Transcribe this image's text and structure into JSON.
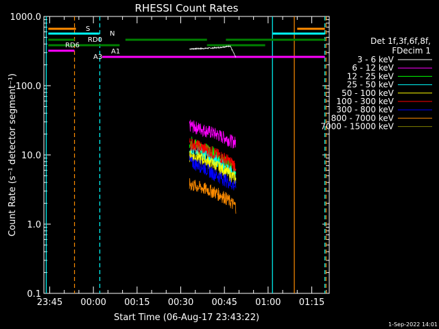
{
  "chart_data": {
    "type": "line",
    "title": "RHESSI Count Rates",
    "xlabel": "Start Time (06-Aug-17 23:43:22)",
    "ylabel": "Count Rate (s⁻¹ detector segment⁻¹)",
    "yscale": "log",
    "ylim": [
      0.1,
      1000
    ],
    "xlim_minutes_from_2345": [
      -2,
      96
    ],
    "xticks": [
      "23:45",
      "00:00",
      "00:15",
      "00:30",
      "00:45",
      "01:00",
      "01:15"
    ],
    "yticks": [
      "0.1",
      "1.0",
      "10.0",
      "100.0",
      "1000.0"
    ],
    "timestamp": "1-Sep-2022 14:01",
    "legend_header": [
      "Det 1f,3f,6f,8f,",
      "FDecim 1"
    ],
    "series": [
      {
        "name": "3 - 6 keV",
        "color": "#ffffff",
        "x": [
          48,
          53,
          58,
          62,
          64
        ],
        "y": [
          340,
          345,
          355,
          375,
          250
        ]
      },
      {
        "name": "6 - 12 keV",
        "color": "#ff00ff",
        "x": [
          48,
          52,
          56,
          60,
          64
        ],
        "y": [
          27,
          24,
          21,
          18,
          15
        ]
      },
      {
        "name": "12 - 25 keV",
        "color": "#00ff00",
        "x": [
          48,
          52,
          56,
          60,
          64
        ],
        "y": [
          16,
          13,
          11,
          8,
          6
        ]
      },
      {
        "name": "25 - 50 keV",
        "color": "#00ffff",
        "x": [
          48,
          52,
          56,
          60,
          64
        ],
        "y": [
          13,
          11,
          9,
          7,
          5
        ]
      },
      {
        "name": "50 - 100 keV",
        "color": "#ffff00",
        "x": [
          48,
          52,
          56,
          60,
          64
        ],
        "y": [
          10,
          9,
          7.5,
          6,
          4.5
        ]
      },
      {
        "name": "100 - 300 keV",
        "color": "#ff0000",
        "x": [
          48,
          52,
          56,
          60,
          64
        ],
        "y": [
          15,
          13,
          11,
          9,
          7
        ]
      },
      {
        "name": "300 - 800 keV",
        "color": "#0000ff",
        "x": [
          48,
          52,
          56,
          60,
          64
        ],
        "y": [
          8,
          7,
          5.5,
          4.5,
          3.5
        ]
      },
      {
        "name": "800 - 7000 keV",
        "color": "#ff8c00",
        "x": [
          48,
          52,
          56,
          60,
          64
        ],
        "y": [
          3.8,
          3.4,
          3,
          2.5,
          1.8
        ]
      },
      {
        "name": "7000 - 15000 keV",
        "color": "#808000",
        "x": [],
        "y": []
      }
    ],
    "flag_labels": [
      {
        "text": "S",
        "color": "#ff8c00"
      },
      {
        "text": "N",
        "color": "#00ffff"
      },
      {
        "text": "RD0",
        "color": "#ffffff"
      },
      {
        "text": "RD6",
        "color": "#ffffff"
      },
      {
        "text": "A1",
        "color": "#ff00ff"
      },
      {
        "text": "A3",
        "color": "#ff00ff"
      }
    ]
  }
}
